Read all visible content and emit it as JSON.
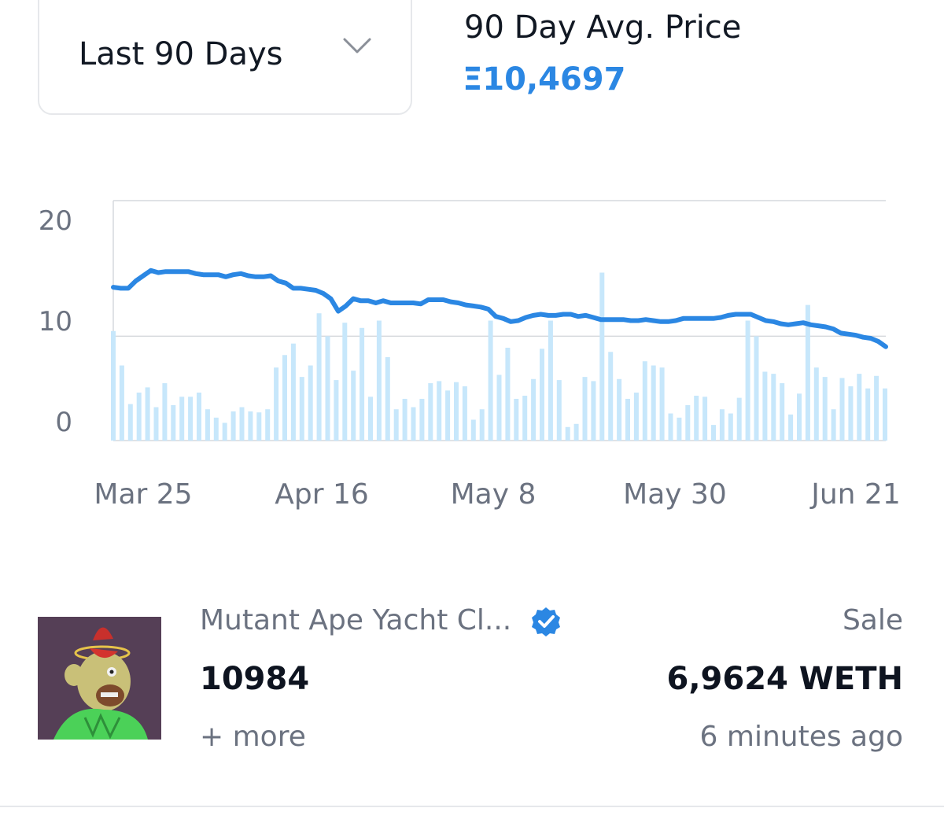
{
  "range_select": {
    "label": "Last 90 Days"
  },
  "avg_price": {
    "title": "90 Day Avg. Price",
    "value": "Ξ10,4697"
  },
  "colors": {
    "line": "#2b87e3",
    "bars": "#c7e7fb",
    "grid": "#d6d9dd"
  },
  "chart_data": {
    "type": "line",
    "title": "",
    "xlabel": "",
    "ylabel": "",
    "ylim": [
      0,
      23
    ],
    "y_ticks": [
      20,
      10,
      0
    ],
    "x_tick_labels": [
      "Mar 25",
      "Apr 16",
      "May 8",
      "May 30",
      "Jun 21"
    ],
    "x_tick_index": [
      4,
      26,
      48,
      70,
      92
    ],
    "grid": "horizontal",
    "legend": "none",
    "series": [
      {
        "kind": "line",
        "values": [
          14.7,
          14.6,
          14.6,
          15.3,
          15.8,
          16.3,
          16.1,
          16.2,
          16.2,
          16.2,
          16.2,
          16.0,
          15.9,
          15.9,
          15.9,
          15.7,
          15.9,
          16.0,
          15.8,
          15.7,
          15.7,
          15.8,
          15.3,
          15.1,
          14.6,
          14.6,
          14.5,
          14.4,
          14.1,
          13.6,
          12.4,
          12.9,
          13.6,
          13.4,
          13.4,
          13.2,
          13.4,
          13.2,
          13.2,
          13.2,
          13.2,
          13.1,
          13.5,
          13.5,
          13.5,
          13.3,
          13.2,
          13.0,
          12.9,
          12.8,
          12.6,
          11.9,
          11.7,
          11.4,
          11.5,
          11.8,
          12.0,
          12.1,
          12.0,
          12.0,
          12.1,
          12.1,
          11.9,
          12.0,
          11.8,
          11.6,
          11.6,
          11.6,
          11.6,
          11.5,
          11.5,
          11.6,
          11.5,
          11.4,
          11.4,
          11.5,
          11.7,
          11.7,
          11.7,
          11.7,
          11.7,
          11.8,
          12.0,
          12.1,
          12.1,
          12.1,
          11.8,
          11.5,
          11.4,
          11.2,
          11.1,
          11.2,
          11.3,
          11.1,
          11.0,
          10.9,
          10.7,
          10.3,
          10.2,
          10.1,
          9.9,
          9.8,
          9.5,
          9.0
        ],
        "pixel_step_note": ""
      },
      {
        "kind": "bar",
        "values": [
          10.5,
          7.2,
          3.5,
          4.6,
          5.1,
          3.2,
          5.5,
          3.4,
          4.2,
          4.2,
          4.6,
          3.0,
          2.2,
          1.7,
          2.8,
          3.2,
          2.8,
          2.7,
          3.0,
          7.0,
          8.2,
          9.3,
          6.1,
          7.2,
          12.2,
          10.0,
          5.8,
          11.3,
          6.7,
          10.8,
          4.2,
          11.5,
          8.0,
          3.0,
          4.0,
          3.2,
          4.0,
          5.5,
          5.7,
          4.8,
          5.6,
          5.2,
          2.0,
          3.0,
          11.5,
          6.3,
          8.9,
          4.0,
          4.3,
          5.9,
          8.8,
          11.5,
          5.8,
          1.3,
          1.6,
          6.1,
          5.7,
          16.1,
          8.5,
          5.9,
          4.0,
          4.6,
          7.6,
          7.2,
          7.0,
          2.6,
          2.2,
          3.4,
          4.3,
          4.2,
          1.5,
          3.0,
          2.6,
          4.1,
          11.5,
          10.0,
          6.6,
          6.4,
          5.5,
          2.5,
          4.5,
          13.0,
          7.0,
          6.1,
          3.0,
          6.0,
          5.2,
          6.4,
          5.0,
          6.2,
          5.0
        ],
        "pixel_step_note": ""
      }
    ]
  },
  "sale": {
    "collection": "Mutant Ape Yacht Cl...",
    "token_id": "10984",
    "more": "+ more",
    "event_type": "Sale",
    "price": "6,9624 WETH",
    "time": "6 minutes ago"
  }
}
